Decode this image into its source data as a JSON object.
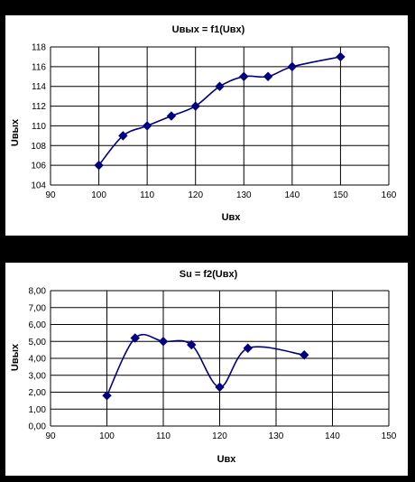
{
  "chart_data": [
    {
      "type": "scatter",
      "title": "Uвых = f1(Uвх)",
      "xlabel": "Uвх",
      "ylabel": "Uвых",
      "xlim": [
        90,
        160
      ],
      "ylim": [
        104,
        118
      ],
      "xticks": [
        "90",
        "100",
        "110",
        "120",
        "130",
        "140",
        "150",
        "160"
      ],
      "yticks": [
        "104",
        "106",
        "108",
        "110",
        "112",
        "114",
        "116",
        "118"
      ],
      "grid": true,
      "color": "#000080",
      "series": [
        {
          "x": [
            100,
            105,
            110,
            115,
            120,
            125,
            130,
            135,
            140,
            150
          ],
          "y": [
            106,
            109,
            110,
            111,
            112,
            114,
            115,
            115,
            116,
            117
          ]
        }
      ]
    },
    {
      "type": "scatter",
      "title": "Su = f2(Uвх)",
      "xlabel": "Uвх",
      "ylabel": "Uвых",
      "xlim": [
        90,
        150
      ],
      "ylim": [
        0,
        8
      ],
      "xticks": [
        "90",
        "100",
        "110",
        "120",
        "130",
        "140",
        "150"
      ],
      "yticks": [
        "0,00",
        "1,00",
        "2,00",
        "3,00",
        "4,00",
        "5,00",
        "6,00",
        "7,00",
        "8,00"
      ],
      "grid": true,
      "color": "#000080",
      "series": [
        {
          "x": [
            100,
            105,
            110,
            115,
            120,
            125,
            135
          ],
          "y": [
            1.8,
            5.2,
            5.0,
            4.8,
            2.3,
            4.6,
            4.2
          ]
        }
      ]
    }
  ]
}
